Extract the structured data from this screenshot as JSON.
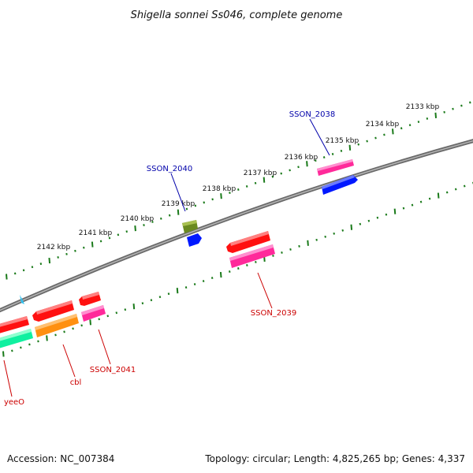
{
  "title": "Shigella sonnei Ss046, complete genome",
  "footer": {
    "accession": "Accession: NC_007384",
    "summary": "Topology: circular; Length: 4,825,265 bp; Genes: 4,337"
  },
  "scale_labels": [
    "2133 kbp",
    "2134 kbp",
    "2135 kbp",
    "2136 kbp",
    "2137 kbp",
    "2138 kbp",
    "2139 kbp",
    "2140 kbp",
    "2141 kbp",
    "2142 kbp"
  ],
  "gene_labels": {
    "SSON_2038": "SSON_2038",
    "SSON_2040": "SSON_2040",
    "SSON_2039": "SSON_2039",
    "SSON_2041": "SSON_2041",
    "cbl": "cbl",
    "yeeO": "yeeO"
  },
  "colors": {
    "backbone": "#808080",
    "ticks": "#1a7a1a",
    "label_forward": "#0000aa",
    "label_reverse": "#cc0000",
    "red": "#ff1010",
    "pink": "#ff2a9a",
    "blue": "#0018ff",
    "olive": "#6a8a20",
    "orange": "#ff9010",
    "teal": "#10f0a0",
    "cyan": "#30c0f0"
  }
}
